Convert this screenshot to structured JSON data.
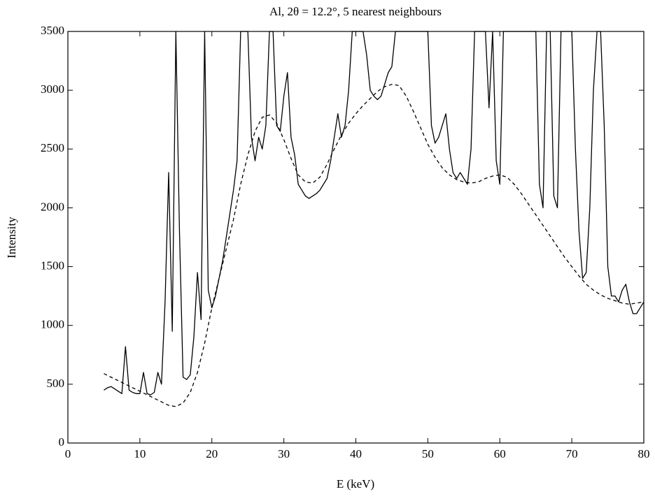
{
  "chart_data": {
    "type": "line",
    "title": "Al, 2θ = 12.2°, 5 nearest neighbours",
    "xlabel": "E (keV)",
    "ylabel": "Intensity",
    "xlim": [
      0,
      80
    ],
    "ylim": [
      0,
      3500
    ],
    "xticks": [
      0,
      10,
      20,
      30,
      40,
      50,
      60,
      70,
      80
    ],
    "yticks": [
      0,
      500,
      1000,
      1500,
      2000,
      2500,
      3000,
      3500
    ],
    "grid": false,
    "series": [
      {
        "color": "#000000",
        "dash": false,
        "x": [
          5,
          5.5,
          6,
          6.5,
          7,
          7.5,
          8,
          8.5,
          9,
          9.5,
          10,
          10.5,
          11,
          11.5,
          12,
          12.5,
          13,
          13.5,
          14,
          14.5,
          15,
          15.5,
          16,
          16.5,
          17,
          17.5,
          18,
          18.5,
          19,
          19.5,
          20,
          20.5,
          21,
          21.5,
          22,
          22.5,
          23,
          23.5,
          24,
          24.5,
          25,
          25.5,
          26,
          26.5,
          27,
          27.5,
          28,
          28.5,
          29,
          29.5,
          30,
          30.5,
          31,
          31.5,
          32,
          32.5,
          33,
          33.5,
          34,
          34.5,
          35,
          35.5,
          36,
          36.5,
          37,
          37.5,
          38,
          38.5,
          39,
          39.5,
          40,
          40.5,
          41,
          41.5,
          42,
          42.5,
          43,
          43.5,
          44,
          44.5,
          45,
          45.5,
          46,
          46.5,
          47,
          47.5,
          48,
          48.5,
          49,
          49.5,
          50,
          50.5,
          51,
          51.5,
          52,
          52.5,
          53,
          53.5,
          54,
          54.5,
          55,
          55.5,
          56,
          56.5,
          57,
          57.5,
          58,
          58.5,
          59,
          59.5,
          60,
          60.5,
          61,
          61.5,
          62,
          62.5,
          63,
          63.5,
          64,
          64.5,
          65,
          65.5,
          66,
          66.5,
          67,
          67.5,
          68,
          68.5,
          69,
          69.5,
          70,
          70.5,
          71,
          71.5,
          72,
          72.5,
          73,
          73.5,
          74,
          74.5,
          75,
          75.5,
          76,
          76.5,
          77,
          77.5,
          78,
          78.5,
          79,
          79.5,
          80
        ],
        "values": [
          450,
          470,
          480,
          460,
          440,
          420,
          820,
          450,
          430,
          420,
          420,
          600,
          420,
          410,
          430,
          600,
          500,
          1200,
          2300,
          950,
          3500,
          1800,
          560,
          540,
          580,
          900,
          1450,
          1050,
          3500,
          1300,
          1150,
          1250,
          1400,
          1550,
          1750,
          1950,
          2150,
          2400,
          3500,
          3500,
          3500,
          2600,
          2400,
          2600,
          2500,
          2700,
          3500,
          3500,
          2700,
          2650,
          2950,
          3150,
          2600,
          2450,
          2200,
          2150,
          2100,
          2080,
          2100,
          2120,
          2150,
          2200,
          2250,
          2400,
          2600,
          2800,
          2600,
          2700,
          3000,
          3500,
          3500,
          3500,
          3500,
          3300,
          3000,
          2950,
          2920,
          2950,
          3050,
          3150,
          3200,
          3500,
          3500,
          3500,
          3500,
          3500,
          3500,
          3500,
          3500,
          3500,
          3500,
          2700,
          2550,
          2600,
          2700,
          2800,
          2500,
          2300,
          2250,
          2300,
          2250,
          2200,
          2500,
          3500,
          3500,
          3500,
          3500,
          2850,
          3500,
          2400,
          2200,
          3500,
          3500,
          3500,
          3500,
          3500,
          3500,
          3500,
          3500,
          3500,
          3500,
          2200,
          2000,
          3500,
          3500,
          2100,
          2000,
          3500,
          3500,
          3500,
          3500,
          2500,
          1800,
          1400,
          1450,
          2000,
          3000,
          3500,
          3500,
          2700,
          1500,
          1250,
          1250,
          1200,
          1300,
          1350,
          1200,
          1100,
          1100,
          1150,
          1200
        ]
      },
      {
        "color": "#000000",
        "dash": true,
        "x": [
          5,
          6,
          7,
          8,
          9,
          10,
          11,
          12,
          13,
          14,
          15,
          16,
          17,
          18,
          19,
          20,
          21,
          22,
          23,
          24,
          25,
          26,
          27,
          28,
          29,
          30,
          31,
          32,
          33,
          34,
          35,
          36,
          37,
          38,
          39,
          40,
          41,
          42,
          43,
          44,
          45,
          46,
          47,
          48,
          49,
          50,
          51,
          52,
          53,
          54,
          55,
          56,
          57,
          58,
          59,
          60,
          61,
          62,
          63,
          64,
          65,
          66,
          67,
          68,
          69,
          70,
          71,
          72,
          73,
          74,
          75,
          76,
          77,
          78,
          79,
          80
        ],
        "values": [
          590,
          560,
          530,
          500,
          470,
          440,
          410,
          380,
          350,
          320,
          310,
          340,
          430,
          600,
          850,
          1150,
          1400,
          1650,
          1900,
          2200,
          2450,
          2650,
          2770,
          2790,
          2720,
          2580,
          2420,
          2280,
          2220,
          2210,
          2260,
          2370,
          2500,
          2620,
          2720,
          2800,
          2870,
          2930,
          2990,
          3030,
          3050,
          3040,
          2950,
          2820,
          2680,
          2540,
          2430,
          2340,
          2280,
          2240,
          2220,
          2210,
          2220,
          2250,
          2270,
          2280,
          2260,
          2200,
          2120,
          2030,
          1940,
          1850,
          1760,
          1670,
          1580,
          1500,
          1420,
          1350,
          1300,
          1260,
          1230,
          1210,
          1190,
          1180,
          1190,
          1200
        ]
      }
    ]
  }
}
